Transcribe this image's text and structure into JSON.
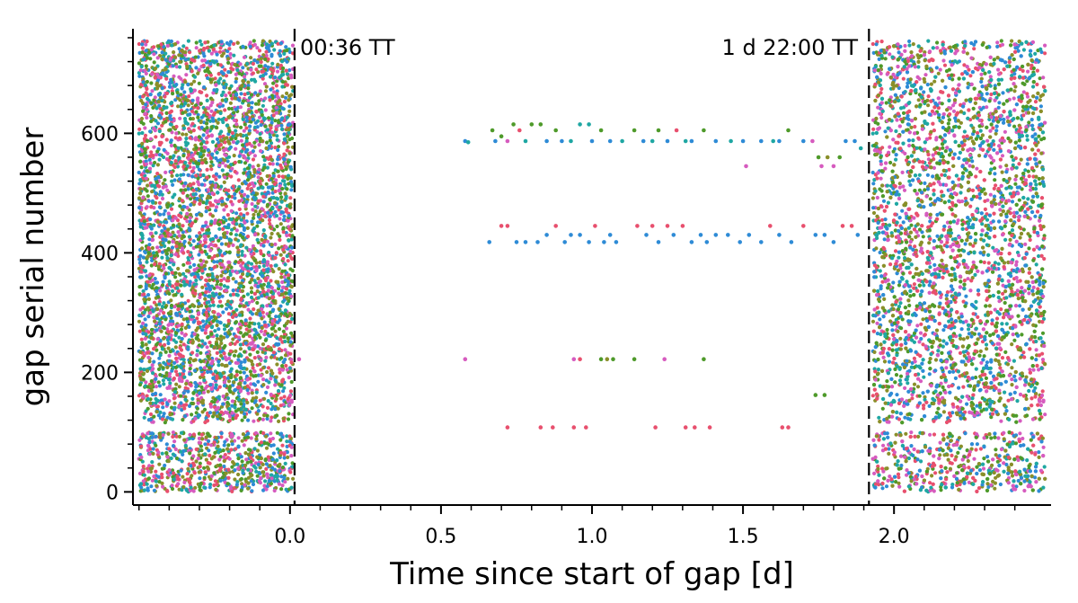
{
  "chart_data": {
    "type": "scatter",
    "title": "",
    "xlabel": "Time since start of gap [d]",
    "ylabel": "gap serial number",
    "xlim": [
      -0.52,
      2.52
    ],
    "ylim": [
      -22,
      775
    ],
    "xticks": [
      0.0,
      0.5,
      1.0,
      1.5,
      2.0
    ],
    "xtick_labels": [
      "0.0",
      "0.5",
      "1.0",
      "1.5",
      "2.0"
    ],
    "yticks": [
      0,
      200,
      400,
      600
    ],
    "ytick_labels": [
      "0",
      "200",
      "400",
      "600"
    ],
    "grid": false,
    "legend": "none",
    "vlines": [
      {
        "x": 0.015,
        "style": "dashed",
        "label": "00:36 TT"
      },
      {
        "x": 1.917,
        "style": "dashed",
        "label": "1 d 22:00 TT"
      }
    ],
    "point_colors": [
      "#e8506e",
      "#2e8bd6",
      "#4e9a2a",
      "#1fa7a3",
      "#d65bbf",
      "#8a8f2a"
    ],
    "dense_regions": [
      {
        "x_range": [
          -0.5,
          0.01
        ],
        "y_range": [
          0,
          755
        ],
        "gap_y": [
          100,
          116
        ],
        "description_value": "dense points before gap"
      },
      {
        "x_range": [
          1.93,
          2.5
        ],
        "y_range": [
          0,
          755
        ],
        "gap_y": [
          100,
          116
        ],
        "description_value": "dense points after gap"
      }
    ],
    "sparse_points": [
      {
        "x": 0.58,
        "y": 587,
        "c": 1
      },
      {
        "x": 0.59,
        "y": 585,
        "c": 3
      },
      {
        "x": 0.67,
        "y": 605,
        "c": 2
      },
      {
        "x": 0.68,
        "y": 587,
        "c": 1
      },
      {
        "x": 0.7,
        "y": 595,
        "c": 2
      },
      {
        "x": 0.72,
        "y": 587,
        "c": 4
      },
      {
        "x": 0.74,
        "y": 615,
        "c": 2
      },
      {
        "x": 0.76,
        "y": 605,
        "c": 0
      },
      {
        "x": 0.78,
        "y": 587,
        "c": 3
      },
      {
        "x": 0.8,
        "y": 615,
        "c": 2
      },
      {
        "x": 0.83,
        "y": 615,
        "c": 2
      },
      {
        "x": 0.85,
        "y": 587,
        "c": 1
      },
      {
        "x": 0.88,
        "y": 605,
        "c": 2
      },
      {
        "x": 0.9,
        "y": 587,
        "c": 1
      },
      {
        "x": 0.93,
        "y": 587,
        "c": 3
      },
      {
        "x": 0.96,
        "y": 615,
        "c": 3
      },
      {
        "x": 0.99,
        "y": 615,
        "c": 3
      },
      {
        "x": 1.0,
        "y": 587,
        "c": 1
      },
      {
        "x": 1.03,
        "y": 605,
        "c": 2
      },
      {
        "x": 1.06,
        "y": 587,
        "c": 1
      },
      {
        "x": 1.1,
        "y": 587,
        "c": 3
      },
      {
        "x": 1.14,
        "y": 605,
        "c": 2
      },
      {
        "x": 1.17,
        "y": 587,
        "c": 1
      },
      {
        "x": 1.2,
        "y": 587,
        "c": 3
      },
      {
        "x": 1.22,
        "y": 605,
        "c": 2
      },
      {
        "x": 1.25,
        "y": 587,
        "c": 1
      },
      {
        "x": 1.28,
        "y": 605,
        "c": 0
      },
      {
        "x": 1.31,
        "y": 587,
        "c": 3
      },
      {
        "x": 1.33,
        "y": 587,
        "c": 1
      },
      {
        "x": 1.37,
        "y": 605,
        "c": 2
      },
      {
        "x": 1.41,
        "y": 587,
        "c": 1
      },
      {
        "x": 1.46,
        "y": 587,
        "c": 3
      },
      {
        "x": 1.5,
        "y": 587,
        "c": 1
      },
      {
        "x": 1.51,
        "y": 545,
        "c": 4
      },
      {
        "x": 1.56,
        "y": 587,
        "c": 1
      },
      {
        "x": 1.6,
        "y": 587,
        "c": 3
      },
      {
        "x": 1.62,
        "y": 587,
        "c": 1
      },
      {
        "x": 1.65,
        "y": 605,
        "c": 2
      },
      {
        "x": 1.7,
        "y": 587,
        "c": 1
      },
      {
        "x": 1.73,
        "y": 587,
        "c": 4
      },
      {
        "x": 1.75,
        "y": 560,
        "c": 2
      },
      {
        "x": 1.76,
        "y": 545,
        "c": 4
      },
      {
        "x": 1.78,
        "y": 560,
        "c": 5
      },
      {
        "x": 1.8,
        "y": 545,
        "c": 4
      },
      {
        "x": 1.82,
        "y": 560,
        "c": 2
      },
      {
        "x": 1.84,
        "y": 587,
        "c": 1
      },
      {
        "x": 1.87,
        "y": 587,
        "c": 1
      },
      {
        "x": 1.89,
        "y": 575,
        "c": 3
      },
      {
        "x": 0.66,
        "y": 418,
        "c": 1
      },
      {
        "x": 0.7,
        "y": 445,
        "c": 0
      },
      {
        "x": 0.72,
        "y": 445,
        "c": 0
      },
      {
        "x": 0.75,
        "y": 418,
        "c": 1
      },
      {
        "x": 0.78,
        "y": 418,
        "c": 1
      },
      {
        "x": 0.82,
        "y": 418,
        "c": 1
      },
      {
        "x": 0.85,
        "y": 430,
        "c": 1
      },
      {
        "x": 0.88,
        "y": 445,
        "c": 0
      },
      {
        "x": 0.91,
        "y": 418,
        "c": 1
      },
      {
        "x": 0.93,
        "y": 430,
        "c": 1
      },
      {
        "x": 0.96,
        "y": 430,
        "c": 1
      },
      {
        "x": 0.99,
        "y": 418,
        "c": 1
      },
      {
        "x": 1.01,
        "y": 445,
        "c": 0
      },
      {
        "x": 1.04,
        "y": 418,
        "c": 1
      },
      {
        "x": 1.06,
        "y": 430,
        "c": 1
      },
      {
        "x": 1.08,
        "y": 418,
        "c": 1
      },
      {
        "x": 1.15,
        "y": 445,
        "c": 0
      },
      {
        "x": 1.18,
        "y": 430,
        "c": 1
      },
      {
        "x": 1.2,
        "y": 445,
        "c": 0
      },
      {
        "x": 1.22,
        "y": 418,
        "c": 1
      },
      {
        "x": 1.25,
        "y": 445,
        "c": 0
      },
      {
        "x": 1.27,
        "y": 430,
        "c": 1
      },
      {
        "x": 1.3,
        "y": 445,
        "c": 0
      },
      {
        "x": 1.33,
        "y": 418,
        "c": 1
      },
      {
        "x": 1.36,
        "y": 430,
        "c": 1
      },
      {
        "x": 1.38,
        "y": 418,
        "c": 1
      },
      {
        "x": 1.41,
        "y": 430,
        "c": 1
      },
      {
        "x": 1.45,
        "y": 430,
        "c": 1
      },
      {
        "x": 1.49,
        "y": 418,
        "c": 1
      },
      {
        "x": 1.52,
        "y": 430,
        "c": 1
      },
      {
        "x": 1.56,
        "y": 418,
        "c": 1
      },
      {
        "x": 1.59,
        "y": 445,
        "c": 0
      },
      {
        "x": 1.62,
        "y": 430,
        "c": 1
      },
      {
        "x": 1.66,
        "y": 418,
        "c": 1
      },
      {
        "x": 1.7,
        "y": 445,
        "c": 0
      },
      {
        "x": 1.74,
        "y": 430,
        "c": 1
      },
      {
        "x": 1.77,
        "y": 430,
        "c": 1
      },
      {
        "x": 1.8,
        "y": 418,
        "c": 1
      },
      {
        "x": 1.83,
        "y": 445,
        "c": 0
      },
      {
        "x": 1.86,
        "y": 445,
        "c": 0
      },
      {
        "x": 1.88,
        "y": 430,
        "c": 1
      },
      {
        "x": 0.03,
        "y": 222,
        "c": 4
      },
      {
        "x": 0.58,
        "y": 222,
        "c": 4
      },
      {
        "x": 0.94,
        "y": 222,
        "c": 4
      },
      {
        "x": 0.96,
        "y": 222,
        "c": 0
      },
      {
        "x": 1.03,
        "y": 222,
        "c": 2
      },
      {
        "x": 1.05,
        "y": 222,
        "c": 5
      },
      {
        "x": 1.07,
        "y": 222,
        "c": 2
      },
      {
        "x": 1.14,
        "y": 222,
        "c": 2
      },
      {
        "x": 1.24,
        "y": 222,
        "c": 4
      },
      {
        "x": 1.37,
        "y": 222,
        "c": 2
      },
      {
        "x": 1.74,
        "y": 162,
        "c": 2
      },
      {
        "x": 1.77,
        "y": 162,
        "c": 2
      },
      {
        "x": 0.72,
        "y": 108,
        "c": 0
      },
      {
        "x": 0.83,
        "y": 108,
        "c": 0
      },
      {
        "x": 0.87,
        "y": 108,
        "c": 0
      },
      {
        "x": 0.94,
        "y": 108,
        "c": 0
      },
      {
        "x": 0.98,
        "y": 108,
        "c": 0
      },
      {
        "x": 1.21,
        "y": 108,
        "c": 0
      },
      {
        "x": 1.31,
        "y": 108,
        "c": 0
      },
      {
        "x": 1.34,
        "y": 108,
        "c": 0
      },
      {
        "x": 1.39,
        "y": 108,
        "c": 0
      },
      {
        "x": 1.63,
        "y": 108,
        "c": 0
      },
      {
        "x": 1.65,
        "y": 108,
        "c": 0
      }
    ]
  }
}
